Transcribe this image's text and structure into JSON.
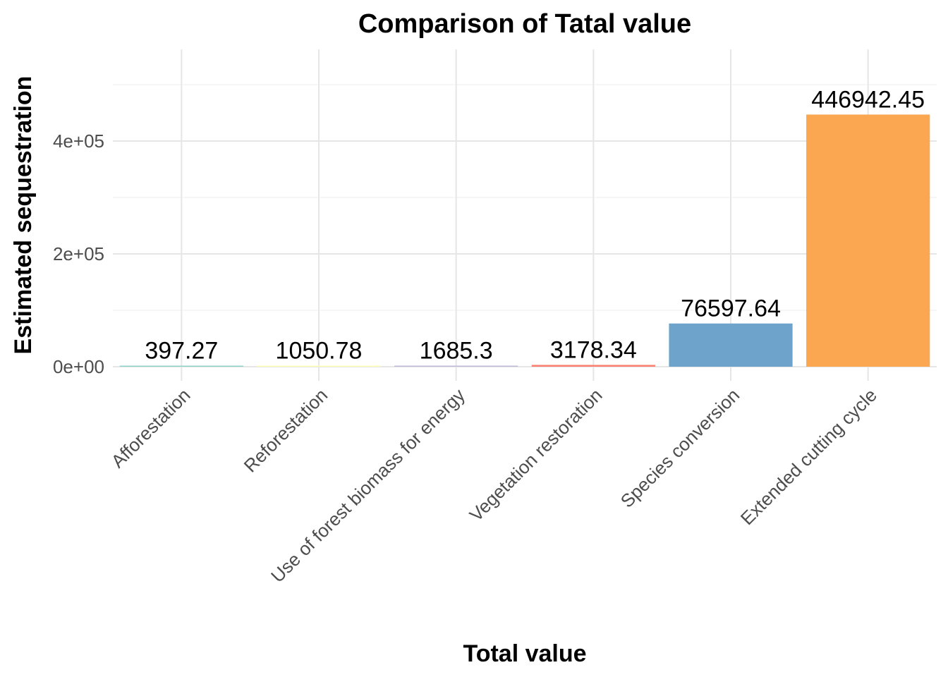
{
  "chart_data": {
    "type": "bar",
    "title": "Comparison of Tatal value",
    "xlabel": "Total value",
    "ylabel": "Estimated sequestration",
    "categories": [
      "Afforestation",
      "Reforestation",
      "Use of forest biomass for energy",
      "Vegetation restoration",
      "Species conversion",
      "Extended cutting cycle"
    ],
    "values": [
      397.27,
      1050.78,
      1685.3,
      3178.34,
      76597.64,
      446942.45
    ],
    "value_labels": [
      "397.27",
      "1050.78",
      "1685.3",
      "3178.34",
      "76597.64",
      "446942.45"
    ],
    "colors": [
      "#8dd3c7",
      "#ffffb3",
      "#bebada",
      "#fb8072",
      "#6ea3cb",
      "#fba651"
    ],
    "ylim": [
      -30000,
      560000
    ],
    "yticks": [
      0,
      200000,
      400000
    ],
    "ytick_labels": [
      "0e+00",
      "2e+05",
      "4e+05"
    ],
    "grid": true,
    "legend": "none"
  }
}
